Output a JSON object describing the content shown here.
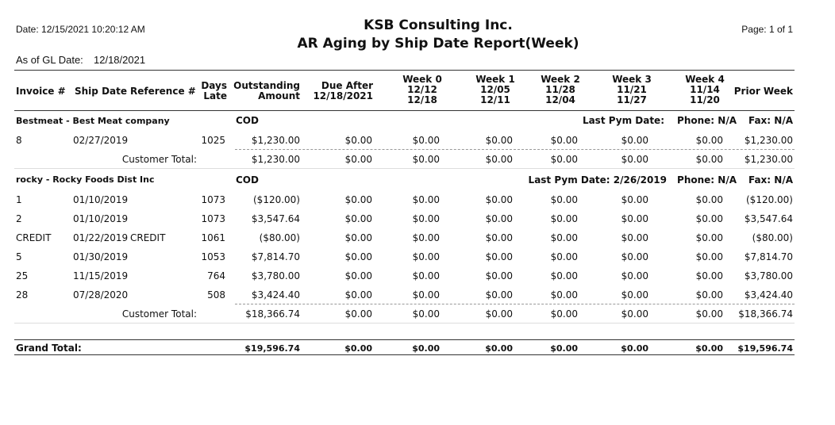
{
  "report": {
    "date_label": "Date: 12/15/2021 10:20:12 AM",
    "company": "KSB Consulting Inc.",
    "title": "AR Aging by Ship Date Report(Week)",
    "page_label": "Page: 1 of 1",
    "as_of_label": "As of GL Date:",
    "as_of_value": "12/18/2021"
  },
  "columns": {
    "invoice": "Invoice #",
    "ship_date": "Ship Date",
    "reference": "Reference #",
    "days_late": [
      "Days",
      "Late"
    ],
    "outstanding": [
      "Outstanding",
      "Amount"
    ],
    "due_after": [
      "Due After",
      "12/18/2021"
    ],
    "week0": [
      "Week 0",
      "12/12",
      "12/18"
    ],
    "week1": [
      "Week 1",
      "12/05",
      "12/11"
    ],
    "week2": [
      "Week 2",
      "11/28",
      "12/04"
    ],
    "week3": [
      "Week 3",
      "11/21",
      "11/27"
    ],
    "week4": [
      "Week 4",
      "11/14",
      "11/20"
    ],
    "prior": "Prior Week"
  },
  "customers": [
    {
      "name": "Bestmeat - Best Meat company",
      "terms": "COD",
      "last_pym": "Last Pym Date:",
      "phone": "Phone: N/A",
      "fax": "Fax: N/A",
      "rows": [
        {
          "inv": "8",
          "ship": "02/27/2019",
          "ref": "",
          "days": "1025",
          "amt": "$1,230.00",
          "v": [
            "$0.00",
            "$0.00",
            "$0.00",
            "$0.00",
            "$0.00",
            "$0.00",
            "$1,230.00"
          ]
        }
      ],
      "total_label": "Customer Total:",
      "total": {
        "amt": "$1,230.00",
        "v": [
          "$0.00",
          "$0.00",
          "$0.00",
          "$0.00",
          "$0.00",
          "$0.00",
          "$1,230.00"
        ]
      }
    },
    {
      "name": "rocky - Rocky Foods Dist Inc",
      "terms": "COD",
      "last_pym": "Last Pym Date: 2/26/2019",
      "phone": "Phone: N/A",
      "fax": "Fax: N/A",
      "rows": [
        {
          "inv": "1",
          "ship": "01/10/2019",
          "ref": "",
          "days": "1073",
          "amt": "($120.00)",
          "v": [
            "$0.00",
            "$0.00",
            "$0.00",
            "$0.00",
            "$0.00",
            "$0.00",
            "($120.00)"
          ]
        },
        {
          "inv": "2",
          "ship": "01/10/2019",
          "ref": "",
          "days": "1073",
          "amt": "$3,547.64",
          "v": [
            "$0.00",
            "$0.00",
            "$0.00",
            "$0.00",
            "$0.00",
            "$0.00",
            "$3,547.64"
          ]
        },
        {
          "inv": "CREDIT",
          "ship": "01/22/2019",
          "ref": "CREDIT",
          "days": "1061",
          "amt": "($80.00)",
          "v": [
            "$0.00",
            "$0.00",
            "$0.00",
            "$0.00",
            "$0.00",
            "$0.00",
            "($80.00)"
          ]
        },
        {
          "inv": "5",
          "ship": "01/30/2019",
          "ref": "",
          "days": "1053",
          "amt": "$7,814.70",
          "v": [
            "$0.00",
            "$0.00",
            "$0.00",
            "$0.00",
            "$0.00",
            "$0.00",
            "$7,814.70"
          ]
        },
        {
          "inv": "25",
          "ship": "11/15/2019",
          "ref": "",
          "days": "764",
          "amt": "$3,780.00",
          "v": [
            "$0.00",
            "$0.00",
            "$0.00",
            "$0.00",
            "$0.00",
            "$0.00",
            "$3,780.00"
          ]
        },
        {
          "inv": "28",
          "ship": "07/28/2020",
          "ref": "",
          "days": "508",
          "amt": "$3,424.40",
          "v": [
            "$0.00",
            "$0.00",
            "$0.00",
            "$0.00",
            "$0.00",
            "$0.00",
            "$3,424.40"
          ]
        }
      ],
      "total_label": "Customer Total:",
      "total": {
        "amt": "$18,366.74",
        "v": [
          "$0.00",
          "$0.00",
          "$0.00",
          "$0.00",
          "$0.00",
          "$0.00",
          "$18,366.74"
        ]
      }
    }
  ],
  "grand_total": {
    "label": "Grand Total:",
    "amt": "$19,596.74",
    "v": [
      "$0.00",
      "$0.00",
      "$0.00",
      "$0.00",
      "$0.00",
      "$0.00",
      "$19,596.74"
    ]
  }
}
